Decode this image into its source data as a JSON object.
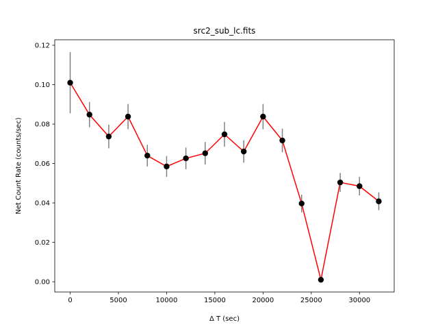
{
  "chart_data": {
    "type": "scatter",
    "title": "src2_sub_lc.fits",
    "xlabel": "Δ T (sec)",
    "ylabel": "Net Count Rate (counts/sec)",
    "xlim": [
      -1600,
      33600
    ],
    "ylim": [
      -0.0052,
      0.1228
    ],
    "xticks": [
      0,
      5000,
      10000,
      15000,
      20000,
      25000,
      30000
    ],
    "xtick_labels": [
      "0",
      "5000",
      "10000",
      "15000",
      "20000",
      "25000",
      "30000"
    ],
    "yticks": [
      0.0,
      0.02,
      0.04,
      0.06,
      0.08,
      0.1,
      0.12
    ],
    "ytick_labels": [
      "0.00",
      "0.02",
      "0.04",
      "0.06",
      "0.08",
      "0.10",
      "0.12"
    ],
    "grid": false,
    "line_color": "#ff0000",
    "marker_color": "#000000",
    "errorbar_color": "#808080",
    "series": [
      {
        "x": [
          0,
          2000,
          4000,
          6000,
          8000,
          10000,
          12000,
          14000,
          16000,
          18000,
          20000,
          22000,
          24000,
          26000,
          28000,
          30000,
          32000
        ],
        "y": [
          0.101,
          0.0848,
          0.0737,
          0.0838,
          0.064,
          0.0585,
          0.0626,
          0.0652,
          0.0748,
          0.0661,
          0.0838,
          0.0717,
          0.0397,
          0.001,
          0.0504,
          0.0485,
          0.0408
        ],
        "yerr": [
          0.0155,
          0.0064,
          0.006,
          0.0064,
          0.0055,
          0.0053,
          0.0055,
          0.0057,
          0.0062,
          0.0057,
          0.0064,
          0.006,
          0.0045,
          0.0008,
          0.0048,
          0.0047,
          0.0045
        ]
      }
    ]
  }
}
